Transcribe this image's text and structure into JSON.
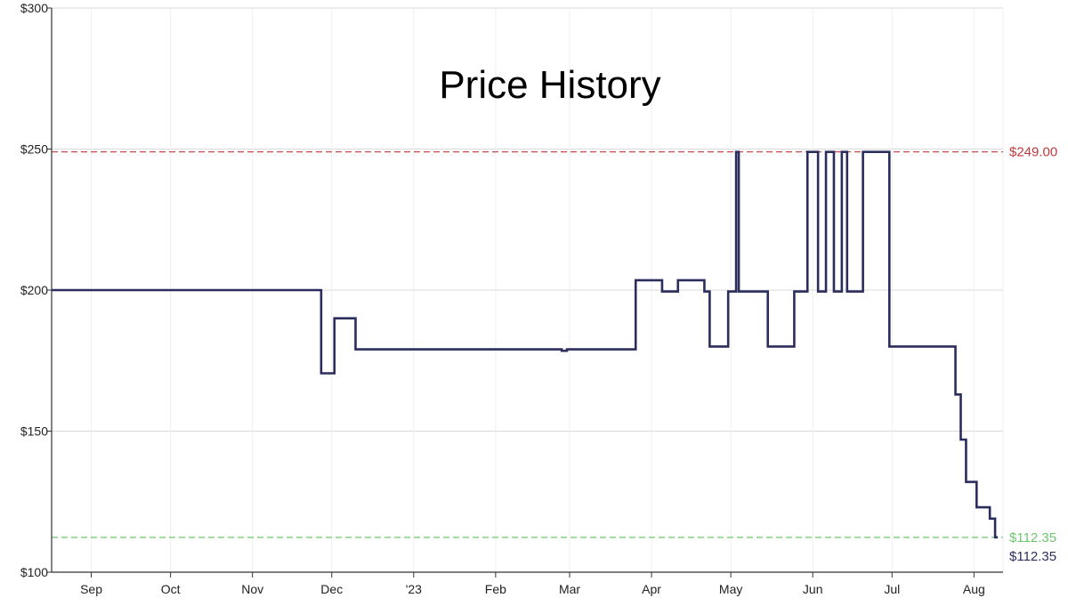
{
  "chart_data": {
    "type": "line",
    "title": "Price History",
    "xlabel": "",
    "ylabel": "",
    "ylim": [
      100,
      300
    ],
    "xlim": [
      "2022-08-17",
      "2023-08-12"
    ],
    "y_ticks": [
      {
        "value": 100,
        "label": "$100"
      },
      {
        "value": 150,
        "label": "$150"
      },
      {
        "value": 200,
        "label": "$200"
      },
      {
        "value": 250,
        "label": "$250"
      },
      {
        "value": 300,
        "label": "$300"
      }
    ],
    "x_ticks": [
      {
        "date": "2022-09-01",
        "label": "Sep"
      },
      {
        "date": "2022-10-01",
        "label": "Oct"
      },
      {
        "date": "2022-11-01",
        "label": "Nov"
      },
      {
        "date": "2022-12-01",
        "label": "Dec"
      },
      {
        "date": "2023-01-01",
        "label": "'23"
      },
      {
        "date": "2023-02-01",
        "label": "Feb"
      },
      {
        "date": "2023-03-01",
        "label": "Mar"
      },
      {
        "date": "2023-04-01",
        "label": "Apr"
      },
      {
        "date": "2023-05-01",
        "label": "May"
      },
      {
        "date": "2023-06-01",
        "label": "Jun"
      },
      {
        "date": "2023-07-01",
        "label": "Jul"
      },
      {
        "date": "2023-08-01",
        "label": "Aug"
      }
    ],
    "grid": true,
    "series": [
      {
        "color": "#2b2d5c",
        "step": true,
        "points": [
          {
            "date": "2022-08-17",
            "price": 200
          },
          {
            "date": "2022-11-27",
            "price": 170.5
          },
          {
            "date": "2022-12-02",
            "price": 190
          },
          {
            "date": "2022-12-10",
            "price": 179
          },
          {
            "date": "2023-02-26",
            "price": 178.5
          },
          {
            "date": "2023-02-28",
            "price": 179
          },
          {
            "date": "2023-03-26",
            "price": 203.5
          },
          {
            "date": "2023-04-05",
            "price": 199.5
          },
          {
            "date": "2023-04-11",
            "price": 203.5
          },
          {
            "date": "2023-04-21",
            "price": 199.5
          },
          {
            "date": "2023-04-23",
            "price": 180
          },
          {
            "date": "2023-04-30",
            "price": 199.5
          },
          {
            "date": "2023-05-03",
            "price": 249
          },
          {
            "date": "2023-05-04",
            "price": 199.5
          },
          {
            "date": "2023-05-15",
            "price": 180
          },
          {
            "date": "2023-05-25",
            "price": 199.5
          },
          {
            "date": "2023-05-30",
            "price": 249
          },
          {
            "date": "2023-06-03",
            "price": 199.5
          },
          {
            "date": "2023-06-06",
            "price": 249
          },
          {
            "date": "2023-06-09",
            "price": 199.5
          },
          {
            "date": "2023-06-12",
            "price": 249
          },
          {
            "date": "2023-06-14",
            "price": 199.5
          },
          {
            "date": "2023-06-20",
            "price": 249
          },
          {
            "date": "2023-06-30",
            "price": 180
          },
          {
            "date": "2023-07-25",
            "price": 163
          },
          {
            "date": "2023-07-27",
            "price": 147
          },
          {
            "date": "2023-07-29",
            "price": 132
          },
          {
            "date": "2023-08-02",
            "price": 123
          },
          {
            "date": "2023-08-07",
            "price": 119
          },
          {
            "date": "2023-08-09",
            "price": 112.35
          },
          {
            "date": "2023-08-10",
            "price": 112.35
          }
        ]
      }
    ],
    "reference_lines": [
      {
        "value": 249,
        "label": "$249.00",
        "color": "#c0393b",
        "style": "dashed"
      },
      {
        "value": 112.35,
        "label": "$112.35",
        "color": "#6cc56c",
        "style": "dashed"
      }
    ],
    "current_label": {
      "value": 112.35,
      "label": "$112.35",
      "color": "#2b2d5c"
    }
  }
}
